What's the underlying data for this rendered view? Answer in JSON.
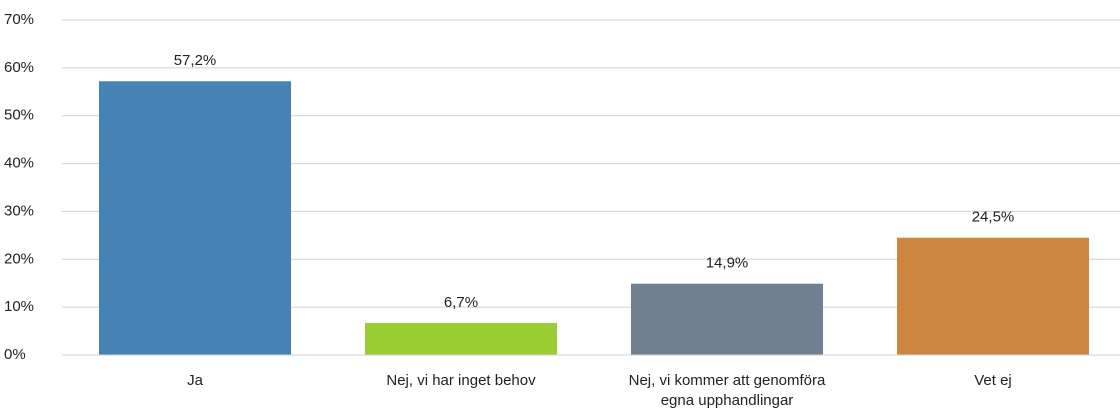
{
  "chart_data": {
    "type": "bar",
    "categories": [
      "Ja",
      "Nej, vi har inget behov",
      "Nej, vi kommer att genomföra egna upphandlingar",
      "Vet ej"
    ],
    "values": [
      57.2,
      6.7,
      14.9,
      24.5
    ],
    "value_labels": [
      "57,2%",
      "6,7%",
      "14,9%",
      "24,5%"
    ],
    "colors": [
      "#4682b4",
      "#9acd32",
      "#708090",
      "#cd853f"
    ],
    "ylim": [
      0,
      70
    ],
    "yticks": [
      {
        "value": 0,
        "label": "0%"
      },
      {
        "value": 10,
        "label": "10%"
      },
      {
        "value": 20,
        "label": "20%"
      },
      {
        "value": 30,
        "label": "30%"
      },
      {
        "value": 40,
        "label": "40%"
      },
      {
        "value": 50,
        "label": "50%"
      },
      {
        "value": 60,
        "label": "60%"
      },
      {
        "value": 70,
        "label": "70%"
      }
    ],
    "grid": true
  }
}
